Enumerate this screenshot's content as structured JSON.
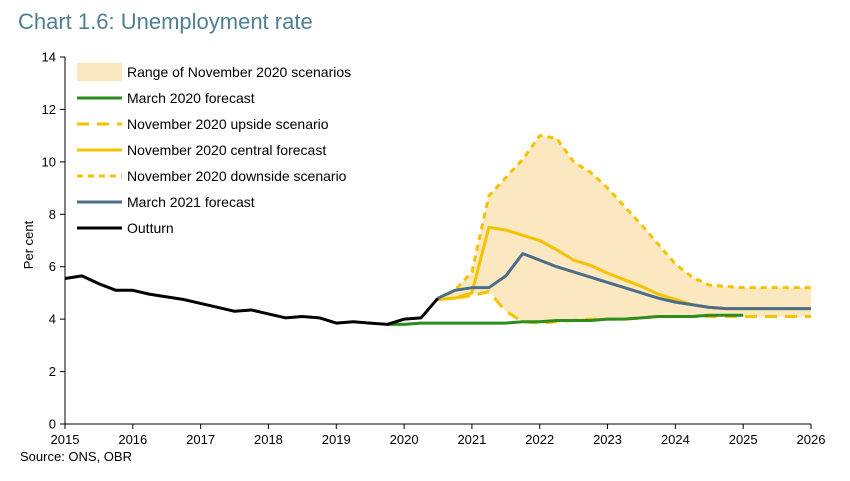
{
  "chart_data": {
    "type": "line",
    "title": "Chart 1.6: Unemployment rate",
    "ylabel": "Per cent",
    "xlabel": "",
    "ylim": [
      0,
      14
    ],
    "xlim": [
      2015,
      2026
    ],
    "yticks": [
      "0",
      "2",
      "4",
      "6",
      "8",
      "10",
      "12",
      "14"
    ],
    "xticks": [
      "2015",
      "2016",
      "2017",
      "2018",
      "2019",
      "2020",
      "2021",
      "2022",
      "2023",
      "2024",
      "2025",
      "2026"
    ],
    "grid": false,
    "legend_position": "top-left",
    "source": "Source: ONS, OBR",
    "range": {
      "name": "Range of November 2020 scenarios",
      "color": "#fbe8c0"
    },
    "series": [
      {
        "name": "March 2020 forecast",
        "color": "#2e8b1e",
        "style": "solid",
        "x": [
          2019.75,
          2020.0,
          2020.25,
          2020.5,
          2020.75,
          2021.0,
          2021.25,
          2021.5,
          2021.75,
          2022.0,
          2022.25,
          2022.5,
          2022.75,
          2023.0,
          2023.25,
          2023.5,
          2023.75,
          2024.0,
          2024.25,
          2024.5,
          2024.75,
          2025.0
        ],
        "y": [
          3.8,
          3.8,
          3.85,
          3.85,
          3.85,
          3.85,
          3.85,
          3.85,
          3.9,
          3.9,
          3.95,
          3.95,
          3.95,
          4.0,
          4.0,
          4.05,
          4.1,
          4.1,
          4.1,
          4.15,
          4.15,
          4.15
        ]
      },
      {
        "name": "November 2020 upside scenario",
        "color": "#f5c200",
        "style": "longdash",
        "x": [
          2020.5,
          2020.75,
          2021.0,
          2021.25,
          2021.5,
          2021.75,
          2022.0,
          2022.25,
          2022.5,
          2022.75,
          2023.0,
          2023.25,
          2023.5,
          2023.75,
          2024.0,
          2024.25,
          2024.5,
          2024.75,
          2025.0,
          2025.25,
          2025.5,
          2025.75,
          2026.0
        ],
        "y": [
          4.75,
          4.8,
          4.9,
          5.05,
          4.3,
          3.9,
          3.85,
          3.9,
          3.95,
          4.0,
          4.0,
          4.0,
          4.05,
          4.1,
          4.1,
          4.1,
          4.1,
          4.1,
          4.1,
          4.1,
          4.1,
          4.1,
          4.1
        ]
      },
      {
        "name": "November 2020 central forecast",
        "color": "#f5c200",
        "style": "solid",
        "x": [
          2020.5,
          2020.75,
          2021.0,
          2021.25,
          2021.5,
          2021.75,
          2022.0,
          2022.25,
          2022.5,
          2022.75,
          2023.0,
          2023.25,
          2023.5,
          2023.75,
          2024.0,
          2024.25,
          2024.5,
          2024.75,
          2025.0,
          2025.25,
          2025.5,
          2025.75,
          2026.0
        ],
        "y": [
          4.75,
          4.8,
          5.0,
          7.5,
          7.4,
          7.2,
          7.0,
          6.65,
          6.25,
          6.05,
          5.75,
          5.5,
          5.25,
          4.95,
          4.75,
          4.55,
          4.45,
          4.4,
          4.4,
          4.4,
          4.4,
          4.4,
          4.4
        ]
      },
      {
        "name": "November 2020 downside scenario",
        "color": "#f5c200",
        "style": "shortdash",
        "x": [
          2020.5,
          2020.75,
          2021.0,
          2021.25,
          2021.5,
          2021.75,
          2022.0,
          2022.25,
          2022.5,
          2022.75,
          2023.0,
          2023.25,
          2023.5,
          2023.75,
          2024.0,
          2024.25,
          2024.5,
          2024.75,
          2025.0,
          2025.25,
          2025.5,
          2025.75,
          2026.0
        ],
        "y": [
          4.75,
          5.1,
          5.8,
          8.7,
          9.4,
          10.1,
          11.0,
          10.9,
          10.0,
          9.6,
          9.0,
          8.3,
          7.6,
          6.85,
          6.1,
          5.6,
          5.3,
          5.25,
          5.2,
          5.2,
          5.2,
          5.2,
          5.2
        ]
      },
      {
        "name": "March 2021 forecast",
        "color": "#4a6d8a",
        "style": "solid",
        "x": [
          2020.5,
          2020.75,
          2021.0,
          2021.25,
          2021.5,
          2021.75,
          2022.0,
          2022.25,
          2022.5,
          2022.75,
          2023.0,
          2023.25,
          2023.5,
          2023.75,
          2024.0,
          2024.25,
          2024.5,
          2024.75,
          2025.0,
          2025.25,
          2025.5,
          2025.75,
          2026.0
        ],
        "y": [
          4.8,
          5.1,
          5.2,
          5.2,
          5.65,
          6.5,
          6.25,
          6.0,
          5.8,
          5.6,
          5.4,
          5.2,
          5.0,
          4.8,
          4.65,
          4.55,
          4.45,
          4.4,
          4.4,
          4.4,
          4.4,
          4.4,
          4.4
        ]
      },
      {
        "name": "Outturn",
        "color": "#000000",
        "style": "solid",
        "x": [
          2015.0,
          2015.25,
          2015.5,
          2015.75,
          2016.0,
          2016.25,
          2016.5,
          2016.75,
          2017.0,
          2017.25,
          2017.5,
          2017.75,
          2018.0,
          2018.25,
          2018.5,
          2018.75,
          2019.0,
          2019.25,
          2019.5,
          2019.75,
          2020.0,
          2020.25,
          2020.5
        ],
        "y": [
          5.55,
          5.65,
          5.35,
          5.1,
          5.1,
          4.95,
          4.85,
          4.75,
          4.6,
          4.45,
          4.3,
          4.35,
          4.2,
          4.05,
          4.1,
          4.05,
          3.85,
          3.9,
          3.85,
          3.8,
          4.0,
          4.05,
          4.8
        ]
      }
    ]
  }
}
